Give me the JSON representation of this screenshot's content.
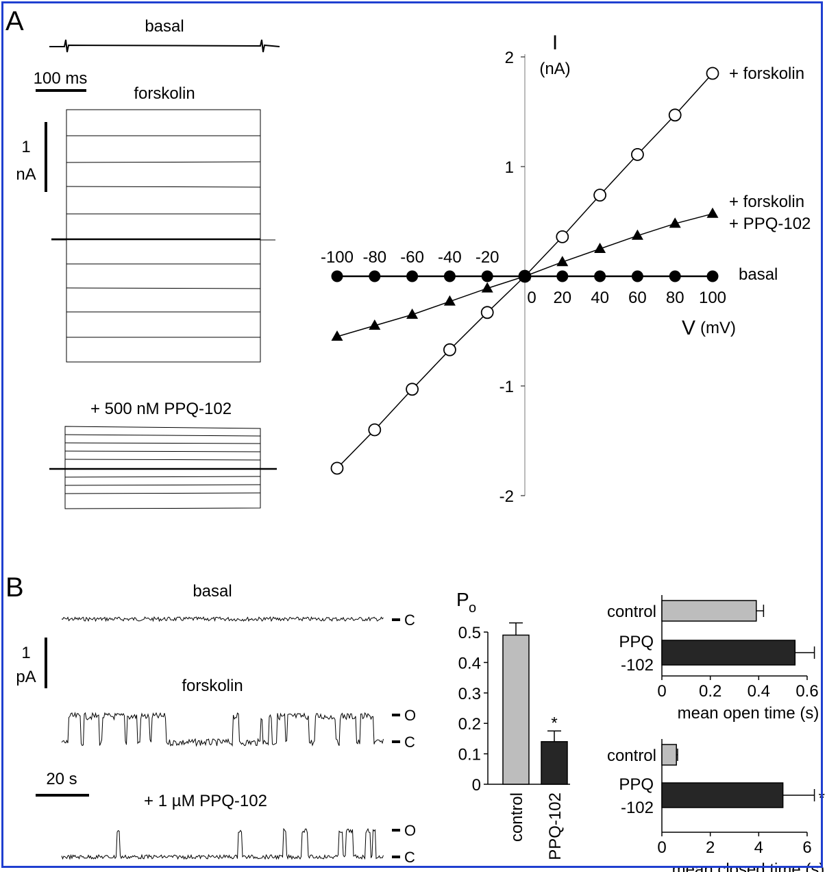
{
  "panel_a": {
    "label": "A",
    "traces": {
      "basal": "basal",
      "forskolin": "forskolin",
      "ppq": "+ 500 nM PPQ-102",
      "time_scale": "100 ms",
      "current_scale_1": "1",
      "current_scale_2": "nA"
    }
  },
  "panel_b": {
    "label": "B",
    "traces": {
      "basal": "basal",
      "forskolin": "forskolin",
      "ppq": "+ 1 µM PPQ-102",
      "time_scale": "20 s",
      "current_scale_1": "1",
      "current_scale_2": "pA",
      "open_marker": "O",
      "closed_marker": "C"
    }
  },
  "chart_data": [
    {
      "type": "line",
      "ylabel": "I",
      "ylabel_unit": "(nA)",
      "xlabel": "V",
      "xlabel_unit": "(mV)",
      "xlim": [
        -100,
        100
      ],
      "ylim": [
        -2,
        2
      ],
      "xticks": [
        -100,
        -80,
        -60,
        -40,
        -20,
        0,
        20,
        40,
        60,
        80,
        100
      ],
      "xtick_labels": [
        "-100",
        "-80",
        "-60",
        "-40",
        "-20",
        "0",
        "20",
        "40",
        "60",
        "80",
        "100"
      ],
      "yticks": [
        -2,
        -1,
        1,
        2
      ],
      "ytick_labels": [
        "-2",
        "-1",
        "1",
        "2"
      ],
      "series": [
        {
          "name": "+ forskolin",
          "marker": "open-circle",
          "x": [
            -100,
            -80,
            -60,
            -40,
            -20,
            0,
            20,
            40,
            60,
            80,
            100
          ],
          "y": [
            -1.75,
            -1.4,
            -1.03,
            -0.67,
            -0.33,
            0,
            0.36,
            0.74,
            1.11,
            1.47,
            1.85
          ]
        },
        {
          "name": "+ forskolin + PPQ-102",
          "name_lines": [
            "+ forskolin",
            "+ PPQ-102"
          ],
          "marker": "filled-triangle",
          "x": [
            -100,
            -80,
            -60,
            -40,
            -20,
            0,
            20,
            40,
            60,
            80,
            100
          ],
          "y": [
            -0.55,
            -0.45,
            -0.35,
            -0.23,
            -0.11,
            0,
            0.13,
            0.25,
            0.37,
            0.48,
            0.57
          ]
        },
        {
          "name": "basal",
          "marker": "filled-circle",
          "x": [
            -100,
            -80,
            -60,
            -40,
            -20,
            0,
            20,
            40,
            60,
            80,
            100
          ],
          "y": [
            0,
            0,
            0,
            0,
            0,
            0,
            0,
            0,
            0,
            0,
            0
          ]
        }
      ]
    },
    {
      "type": "bar",
      "ylabel": "P",
      "ylabel_sub": "o",
      "ylim": [
        0,
        0.5
      ],
      "yticks": [
        0,
        0.1,
        0.2,
        0.3,
        0.4,
        0.5
      ],
      "ytick_labels": [
        "0",
        "0.1",
        "0.2",
        "0.3",
        "0.4",
        "0.5"
      ],
      "categories": [
        "control",
        "PPQ-102"
      ],
      "values": [
        0.49,
        0.14
      ],
      "errors": [
        0.04,
        0.035
      ],
      "colors": [
        "#bdbdbd",
        "#262626"
      ],
      "significance": [
        "",
        "*"
      ]
    },
    {
      "type": "bar",
      "orientation": "horizontal",
      "xlabel": "mean open time (s)",
      "xlim": [
        0,
        0.6
      ],
      "xticks": [
        0,
        0.2,
        0.4,
        0.6
      ],
      "xtick_labels": [
        "0",
        "0.2",
        "0.4",
        "0.6"
      ],
      "categories": [
        "control",
        "PPQ -102"
      ],
      "category_lines": [
        [
          "control"
        ],
        [
          "PPQ",
          "-102"
        ]
      ],
      "values": [
        0.39,
        0.55
      ],
      "errors": [
        0.03,
        0.08
      ],
      "colors": [
        "#bdbdbd",
        "#262626"
      ],
      "significance": [
        "",
        ""
      ]
    },
    {
      "type": "bar",
      "orientation": "horizontal",
      "xlabel": "mean closed time (s)",
      "xlim": [
        0,
        6
      ],
      "xticks": [
        0,
        2,
        4,
        6
      ],
      "xtick_labels": [
        "0",
        "2",
        "4",
        "6"
      ],
      "categories": [
        "control",
        "PPQ -102"
      ],
      "category_lines": [
        [
          "control"
        ],
        [
          "PPQ",
          "-102"
        ]
      ],
      "values": [
        0.6,
        5.0
      ],
      "errors": [
        0.05,
        1.3
      ],
      "colors": [
        "#bdbdbd",
        "#262626"
      ],
      "significance": [
        "",
        "*"
      ]
    }
  ]
}
